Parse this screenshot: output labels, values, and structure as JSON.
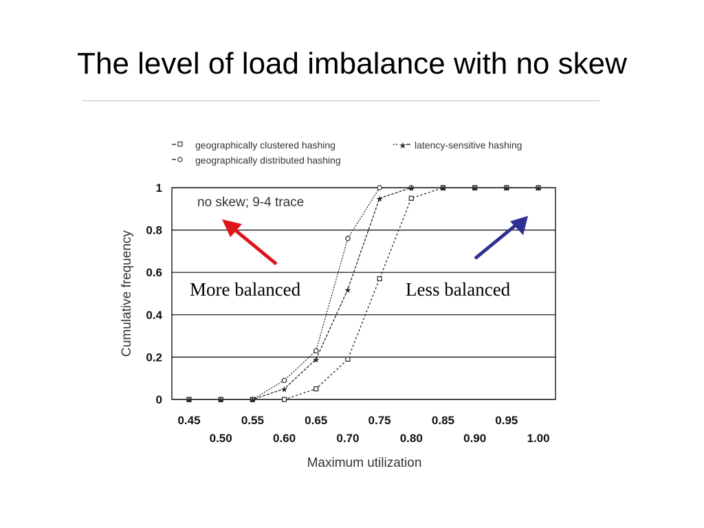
{
  "slide": {
    "title": "The level of load imbalance with no skew"
  },
  "annotations": {
    "more_balanced": "More balanced",
    "less_balanced": "Less balanced"
  },
  "colors": {
    "more_balanced_arrow": "#e0141b",
    "less_balanced_arrow": "#2e3192"
  },
  "chart_data": {
    "type": "line",
    "annotation": "no skew; 9-4 trace",
    "xlabel": "Maximum utilization",
    "ylabel": "Cumulative frequency",
    "xlim": [
      0.45,
      1.0
    ],
    "ylim": [
      0,
      1
    ],
    "x_ticks_top": [
      "0.45",
      "0.55",
      "0.65",
      "0.75",
      "0.85",
      "0.95"
    ],
    "x_ticks_bottom": [
      "0.50",
      "0.60",
      "0.70",
      "0.80",
      "0.90",
      "1.00"
    ],
    "y_ticks": [
      "0",
      "0.2",
      "0.4",
      "0.6",
      "0.8",
      "1"
    ],
    "grid": "horizontal",
    "legend_position": "top",
    "series": [
      {
        "name": "geographically clustered hashing",
        "marker": "square",
        "x": [
          0.45,
          0.5,
          0.55,
          0.6,
          0.65,
          0.7,
          0.75,
          0.8,
          0.85,
          0.9,
          0.95,
          1.0
        ],
        "y": [
          0,
          0,
          0,
          0,
          0.05,
          0.19,
          0.57,
          0.95,
          1,
          1,
          1,
          1
        ]
      },
      {
        "name": "geographically distributed hashing",
        "marker": "circle",
        "x": [
          0.45,
          0.5,
          0.55,
          0.6,
          0.65,
          0.7,
          0.75,
          0.8,
          0.85,
          0.9,
          0.95,
          1.0
        ],
        "y": [
          0,
          0,
          0,
          0.09,
          0.23,
          0.76,
          1,
          1,
          1,
          1,
          1,
          1
        ]
      },
      {
        "name": "latency-sensitive hashing",
        "marker": "star",
        "x": [
          0.45,
          0.5,
          0.55,
          0.6,
          0.65,
          0.7,
          0.75,
          0.8,
          0.85,
          0.9,
          0.95,
          1.0
        ],
        "y": [
          0,
          0,
          0,
          0.05,
          0.19,
          0.52,
          0.95,
          1,
          1,
          1,
          1,
          1
        ]
      }
    ]
  }
}
